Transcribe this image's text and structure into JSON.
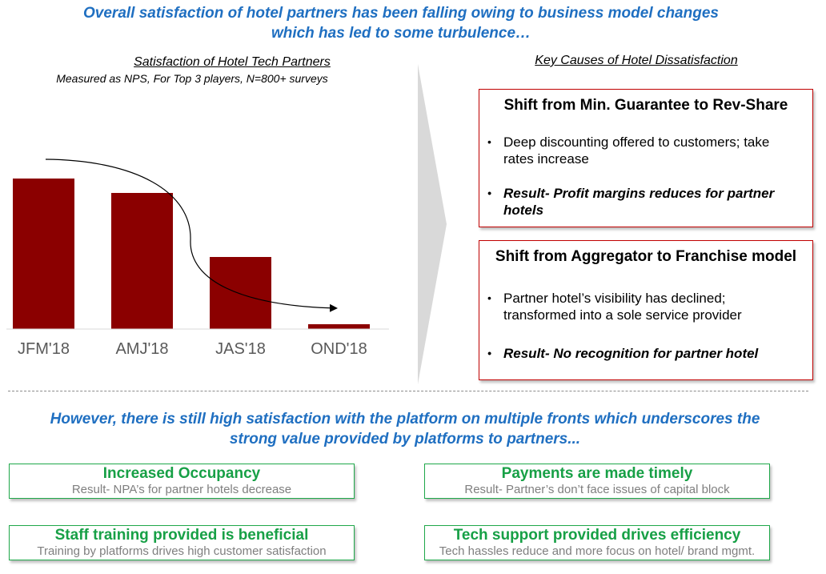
{
  "headline_top": [
    "Overall satisfaction of hotel partners has been falling owing to business model changes",
    "which has led to some turbulence…"
  ],
  "chart_data": {
    "type": "bar",
    "title": "Satisfaction of Hotel Tech Partners",
    "subtitle": "Measured as NPS, For Top 3 players, N=800+ surveys",
    "categories": [
      "JFM'18",
      "AMJ'18",
      "JAS'18",
      "OND'18"
    ],
    "values": [
      94,
      85,
      45,
      3
    ],
    "ylim": [
      0,
      100
    ],
    "grid": false,
    "legend": "none",
    "bar_color": "#8b0000",
    "trend_arrow": true
  },
  "causes": {
    "title": "Key Causes of Hotel Dissatisfaction",
    "items": [
      {
        "heading": "Shift from Min. Guarantee to Rev-Share",
        "bullet": "Deep discounting offered to customers; take rates increase",
        "result": "Result- Profit margins reduces for partner hotels"
      },
      {
        "heading": "Shift from Aggregator to Franchise model",
        "bullet": "Partner hotel’s visibility has declined; transformed into a sole service provider",
        "result": "Result- No recognition for partner hotel"
      }
    ]
  },
  "headline_bottom": [
    "However, there is still high satisfaction with the platform on multiple fronts which underscores the",
    "strong value provided by platforms to partners..."
  ],
  "benefits": [
    {
      "title": "Increased Occupancy",
      "subtitle": "Result- NPA’s for partner hotels decrease"
    },
    {
      "title": "Payments are made timely",
      "subtitle": "Result- Partner’s don’t face issues of capital block"
    },
    {
      "title": "Staff training provided is beneficial",
      "subtitle": "Training by platforms drives high customer satisfaction"
    },
    {
      "title": "Tech support provided drives efficiency",
      "subtitle": "Tech hassles reduce and more focus on hotel/ brand mgmt."
    }
  ],
  "colors": {
    "headline": "#1f6fc1",
    "cause_border": "#c00000",
    "benefit_border": "#1fa84a",
    "benefit_title": "#17a046",
    "benefit_subtitle": "#7f7f7f",
    "chevron": "#d9d9d9"
  }
}
